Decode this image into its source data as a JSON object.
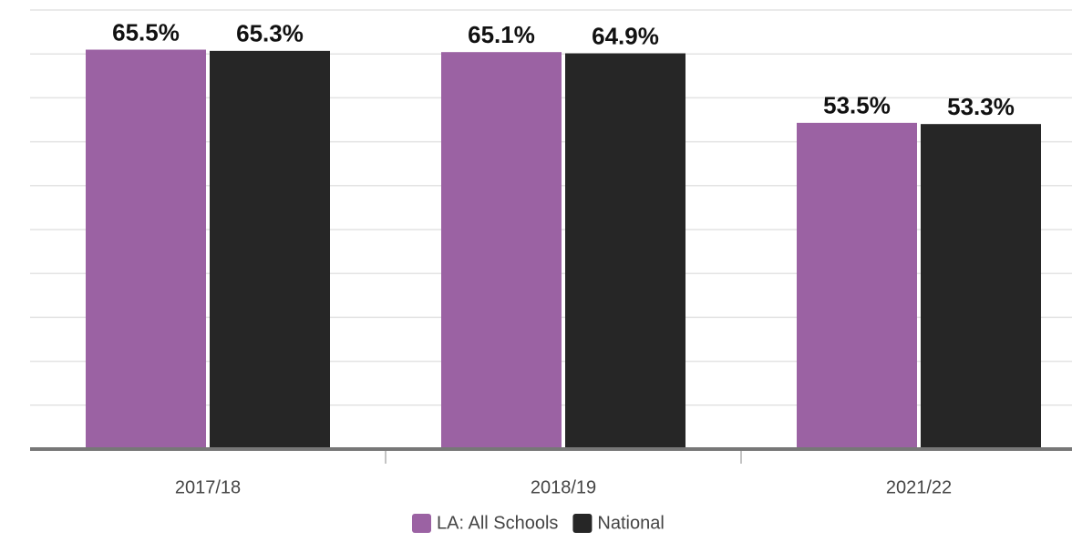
{
  "chart_data": {
    "type": "bar",
    "categories": [
      "2017/18",
      "2018/19",
      "2021/22"
    ],
    "series": [
      {
        "name": "LA: All Schools",
        "color": "#9b62a3",
        "values": [
          65.5,
          65.1,
          53.5
        ],
        "value_labels": [
          "65.5%",
          "65.1%",
          "53.5%"
        ]
      },
      {
        "name": "National",
        "color": "#262626",
        "values": [
          65.3,
          64.9,
          53.3
        ],
        "value_labels": [
          "65.3%",
          "64.9%",
          "53.3%"
        ]
      }
    ],
    "ylim": [
      0,
      72
    ],
    "yticks": [
      0,
      7.2,
      14.4,
      21.6,
      28.8,
      36,
      43.2,
      50.4,
      57.6,
      64.8,
      72
    ],
    "grid": true
  }
}
